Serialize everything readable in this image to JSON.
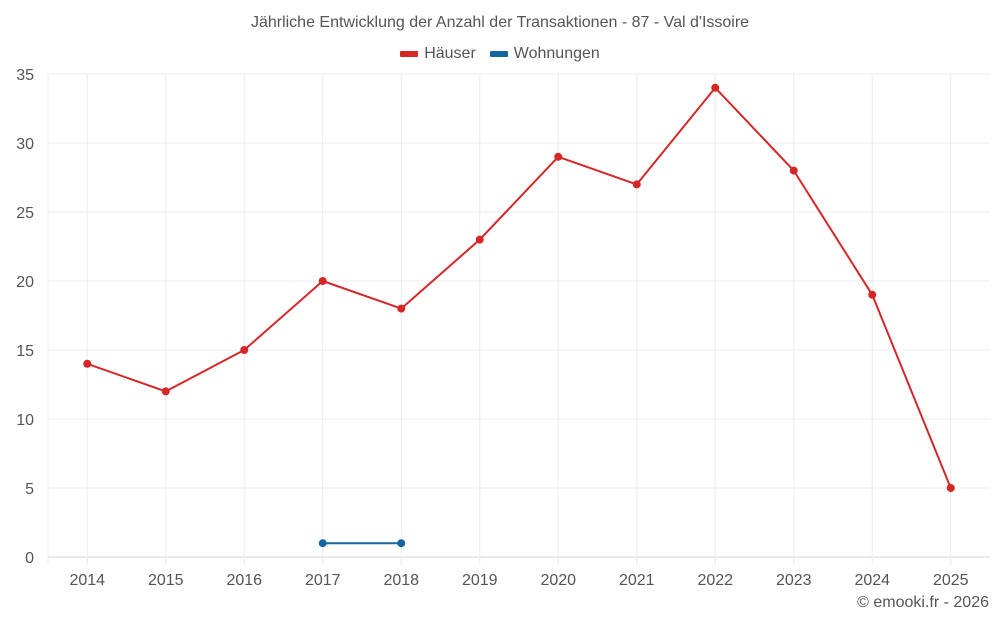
{
  "chart_data": {
    "type": "line",
    "title": "Jährliche Entwicklung der Anzahl der Transaktionen - 87 - Val d'Issoire",
    "xlabel": "",
    "ylabel": "",
    "categories": [
      "2014",
      "2015",
      "2016",
      "2017",
      "2018",
      "2019",
      "2020",
      "2021",
      "2022",
      "2023",
      "2024",
      "2025"
    ],
    "series": [
      {
        "name": "Häuser",
        "color": "#d62728",
        "values": [
          14,
          12,
          15,
          20,
          18,
          23,
          29,
          27,
          34,
          28,
          19,
          5
        ]
      },
      {
        "name": "Wohnungen",
        "color": "#1565a0",
        "values": [
          null,
          null,
          null,
          1,
          1,
          null,
          null,
          null,
          null,
          null,
          null,
          null
        ]
      }
    ],
    "ylim": [
      0,
      35
    ],
    "yticks": [
      0,
      5,
      10,
      15,
      20,
      25,
      30,
      35
    ],
    "grid": true,
    "legend_position": "top"
  },
  "footer": {
    "credit": "© emooki.fr - 2026"
  }
}
